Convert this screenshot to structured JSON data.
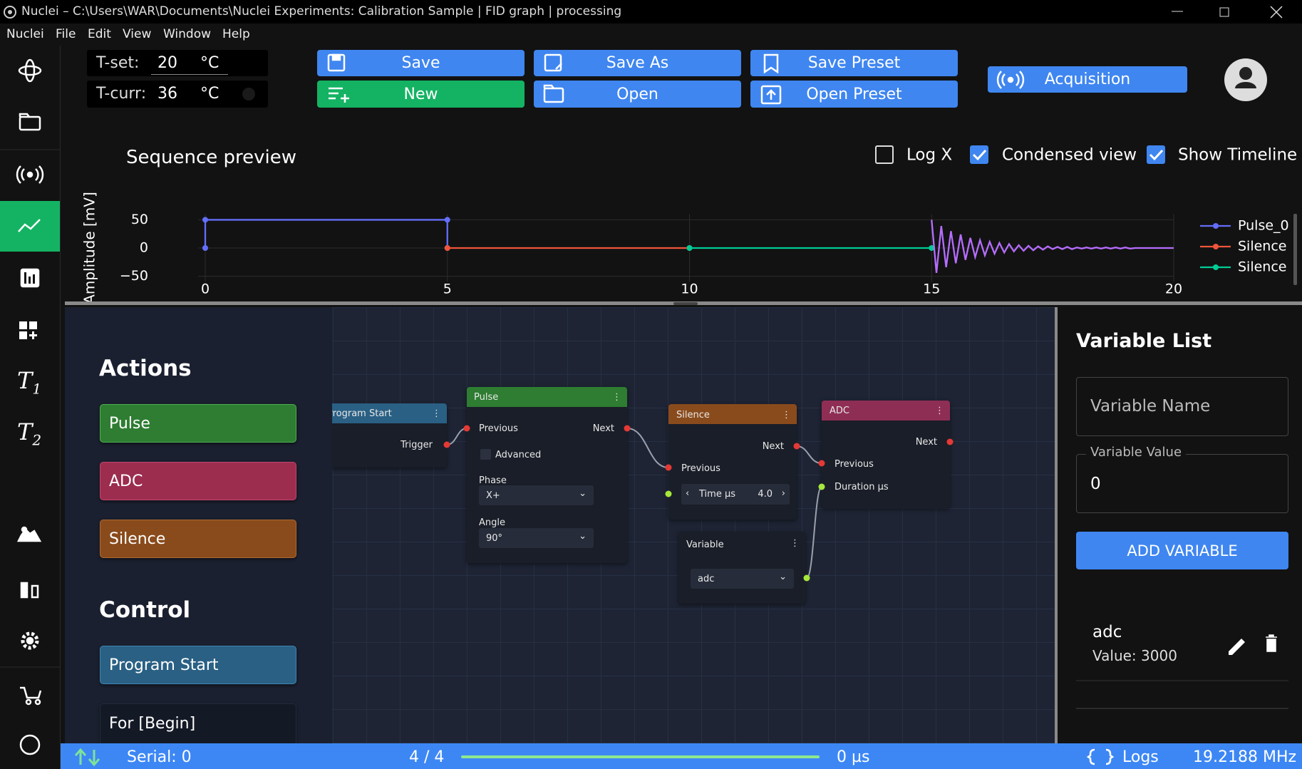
{
  "window": {
    "title": "Nuclei – C:\\Users\\WAR\\Documents\\Nuclei Experiments: Calibration Sample | FID graph | processing"
  },
  "menu": [
    "Nuclei",
    "File",
    "Edit",
    "View",
    "Window",
    "Help"
  ],
  "temperature": {
    "set_label": "T-set:",
    "set_value": "20",
    "current_label": "T-curr:",
    "current_value": "36",
    "unit": "°C"
  },
  "toolbar": {
    "buttons": [
      "Save",
      "Save As",
      "Save Preset",
      "New",
      "Open",
      "Open Preset"
    ],
    "acquisition": "Acquisition"
  },
  "sidebar": {
    "labels": [
      {
        "main": "T",
        "sub": "1"
      },
      {
        "main": "T",
        "sub": "2"
      }
    ]
  },
  "preview": {
    "title": "Sequence preview",
    "options": [
      {
        "label": "Log X",
        "checked": false
      },
      {
        "label": "Condensed view",
        "checked": true
      },
      {
        "label": "Show Timeline",
        "checked": true
      }
    ]
  },
  "chart_data": {
    "type": "line",
    "y_label": "Amplitude [mV]",
    "xlim": [
      0,
      20
    ],
    "xticks": [
      0,
      5,
      10,
      15,
      20
    ],
    "ylim": [
      -60,
      60
    ],
    "yticks": [
      {
        "value": -50,
        "label": "−50"
      },
      0,
      50
    ],
    "grid": true,
    "legend": "right",
    "series": [
      {
        "name": "Pulse_0",
        "color": "#636efa",
        "markers": true,
        "x": [
          0,
          0,
          5,
          5
        ],
        "values": [
          0,
          50,
          50,
          0
        ]
      },
      {
        "name": "Silence",
        "color": "#ef553b",
        "markers": true,
        "x": [
          5,
          10
        ],
        "values": [
          0,
          0
        ]
      },
      {
        "name": "Silence",
        "color": "#00cc96",
        "markers": true,
        "x": [
          10,
          15
        ],
        "values": [
          0,
          0
        ]
      },
      {
        "color": "#b66dff",
        "markers": false,
        "x": [
          15,
          15.1,
          15.2,
          15.3,
          15.4,
          15.5,
          15.6,
          15.7,
          15.8,
          15.9,
          16,
          16.1,
          16.2,
          16.3,
          16.4,
          16.5,
          16.6,
          16.7,
          16.8,
          16.9,
          17,
          17.1,
          17.2,
          17.3,
          17.4,
          17.5,
          17.6,
          17.7,
          17.8,
          17.9,
          18,
          18.1,
          18.2,
          18.3,
          18.4,
          18.5,
          18.6,
          18.7,
          18.8,
          18.9,
          19,
          19.1,
          19.2,
          19.3,
          19.4,
          19.5,
          19.6,
          19.7,
          19.8,
          19.9,
          20
        ],
        "values": [
          50,
          -44,
          39,
          -34,
          30,
          -27,
          24,
          -21,
          18,
          -16,
          14,
          -13,
          11,
          -10,
          9,
          -8,
          7,
          -6,
          5,
          -5,
          4,
          -4,
          3,
          -3,
          3,
          -2,
          2,
          -2,
          2,
          -2,
          1,
          -1,
          1,
          -1,
          1,
          -1,
          1,
          -1,
          1,
          -1,
          1,
          -1,
          0,
          0,
          0,
          0,
          0,
          0,
          0,
          0,
          0
        ]
      }
    ]
  },
  "palette": {
    "actions_title": "Actions",
    "actions": [
      "Pulse",
      "ADC",
      "Silence"
    ],
    "control_title": "Control",
    "control": [
      "Program Start",
      "For [Begin]"
    ]
  },
  "nodes": [
    {
      "title": "Program Start",
      "outputs": [
        "Trigger"
      ]
    },
    {
      "title": "Pulse",
      "inputs": [
        "Previous"
      ],
      "outputs": [
        "Next"
      ],
      "checkbox": "Advanced",
      "fields": [
        {
          "label": "Phase",
          "value": "X+"
        },
        {
          "label": "Angle",
          "value": "90°"
        }
      ]
    },
    {
      "title": "Silence",
      "outputs": [
        "Next"
      ],
      "inputs": [
        "Previous"
      ],
      "stepper": {
        "label": "Time µs",
        "value": "4.0"
      }
    },
    {
      "title": "Variable",
      "select": "adc"
    },
    {
      "title": "ADC",
      "outputs": [
        "Next"
      ],
      "inputs": [
        "Previous",
        "Duration µs"
      ]
    }
  ],
  "variables": {
    "title": "Variable List",
    "name_placeholder": "Variable Name",
    "value_label": "Variable Value",
    "value": "0",
    "add_button": "ADD VARIABLE",
    "items": [
      {
        "name": "adc",
        "value": "Value: 3000"
      }
    ]
  },
  "status": {
    "serial": "Serial: 0",
    "progress": "4 / 4",
    "time": "0 µs",
    "logs": "Logs",
    "frequency": "19.2188 MHz"
  }
}
